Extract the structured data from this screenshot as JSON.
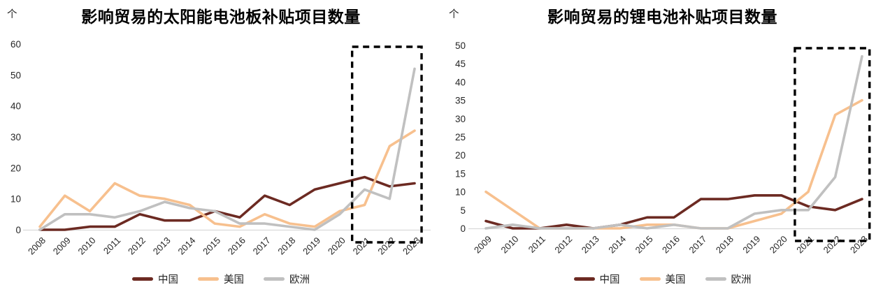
{
  "page_background": "#ffffff",
  "text_color": "#262626",
  "axis_color": "#D9D9D9",
  "highlight_box_color": "#000000",
  "chart_data": [
    {
      "type": "line",
      "title": "影响贸易的太阳能电池板补贴项目数量",
      "unit": "个",
      "categories": [
        "2008",
        "2009",
        "2010",
        "2011",
        "2012",
        "2013",
        "2014",
        "2015",
        "2016",
        "2017",
        "2018",
        "2019",
        "2020",
        "2021",
        "2022",
        "2023"
      ],
      "series": [
        {
          "name": "中国",
          "color": "#6C2A22",
          "values": [
            0,
            0,
            1,
            1,
            5,
            3,
            3,
            6,
            4,
            11,
            8,
            13,
            15,
            17,
            14,
            15
          ]
        },
        {
          "name": "美国",
          "color": "#F7C08E",
          "values": [
            1,
            11,
            6,
            15,
            11,
            10,
            8,
            2,
            1,
            5,
            2,
            1,
            6,
            8,
            27,
            32
          ]
        },
        {
          "name": "欧洲",
          "color": "#C0C0C0",
          "values": [
            0,
            5,
            5,
            4,
            6,
            9,
            7,
            6,
            2,
            2,
            1,
            0,
            5,
            13,
            10,
            52
          ]
        }
      ],
      "ylim": [
        0,
        60
      ],
      "ytick_step": 10,
      "grid": false,
      "legend_position": "bottom",
      "highlight_box": {
        "from": "2021",
        "to": "2023",
        "style": "dashed"
      }
    },
    {
      "type": "line",
      "title": "影响贸易的锂电池补贴项目数量",
      "unit": "个",
      "categories": [
        "2009",
        "2010",
        "2011",
        "2012",
        "2013",
        "2014",
        "2015",
        "2016",
        "2017",
        "2018",
        "2019",
        "2020",
        "2021",
        "2022",
        "2023"
      ],
      "series": [
        {
          "name": "中国",
          "color": "#6C2A22",
          "values": [
            2,
            0,
            0,
            1,
            0,
            1,
            3,
            3,
            8,
            8,
            9,
            9,
            6,
            5,
            8
          ]
        },
        {
          "name": "美国",
          "color": "#F7C08E",
          "values": [
            10,
            5,
            0,
            0,
            0,
            0,
            1,
            1,
            0,
            0,
            2,
            4,
            10,
            31,
            35
          ]
        },
        {
          "name": "欧洲",
          "color": "#C0C0C0",
          "values": [
            0,
            1,
            0,
            0,
            0,
            1,
            0,
            1,
            0,
            0,
            4,
            5,
            5,
            14,
            47
          ]
        }
      ],
      "ylim": [
        0,
        50
      ],
      "ytick_step": 5,
      "grid": false,
      "legend_position": "bottom",
      "highlight_box": {
        "from": "2021",
        "to": "2023",
        "style": "dashed"
      }
    }
  ]
}
